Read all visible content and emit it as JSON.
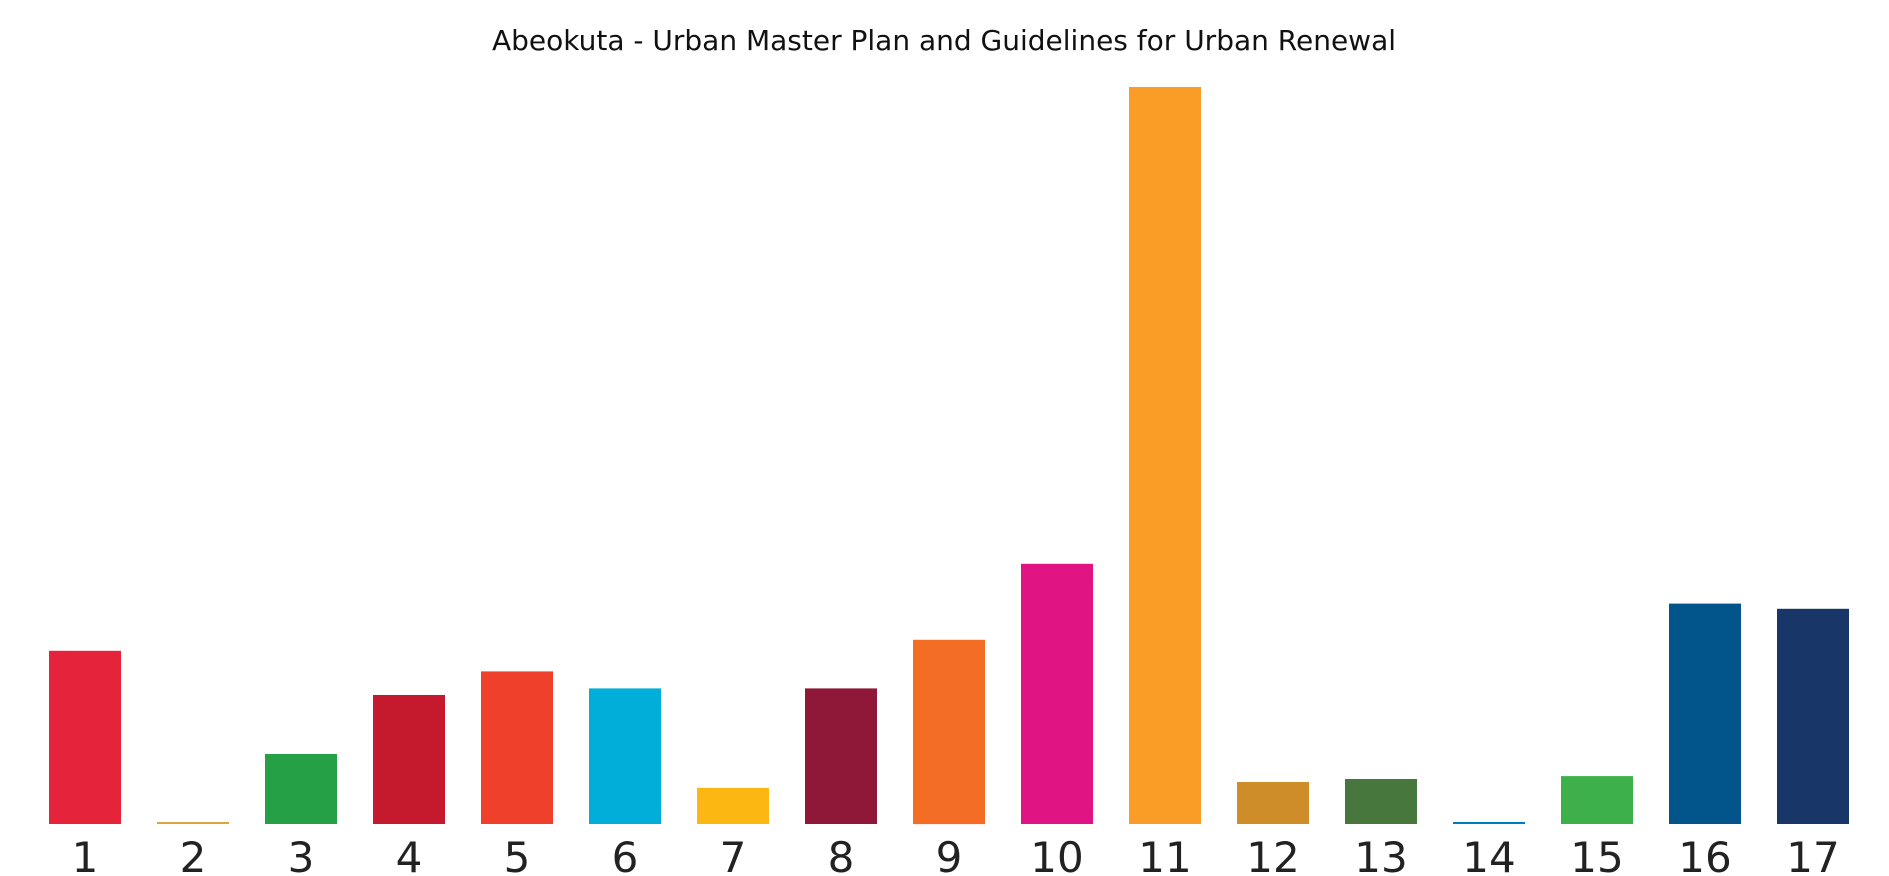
{
  "chart_data": {
    "type": "bar",
    "title": "Abeokuta - Urban Master Plan and Guidelines for Urban Renewal",
    "xlabel": "",
    "ylabel": "",
    "categories": [
      "1",
      "2",
      "3",
      "4",
      "5",
      "6",
      "7",
      "8",
      "9",
      "10",
      "11",
      "12",
      "13",
      "14",
      "15",
      "16",
      "17"
    ],
    "values": [
      23.5,
      0.2,
      9.5,
      17.5,
      20.7,
      18.4,
      4.9,
      18.4,
      25.0,
      35.3,
      100,
      5.7,
      6.1,
      0.2,
      6.5,
      29.9,
      29.2
    ],
    "colors": [
      "#e5243b",
      "#dda63a",
      "#26a047",
      "#c5192d",
      "#ef402b",
      "#00aed9",
      "#fdb713",
      "#8f1838",
      "#f36d25",
      "#e11484",
      "#f99d26",
      "#cf8d2a",
      "#48773e",
      "#007dbc",
      "#3eb049",
      "#02558b",
      "#183668"
    ],
    "ylim": [
      0,
      100
    ],
    "grid": false,
    "legend": "none"
  }
}
